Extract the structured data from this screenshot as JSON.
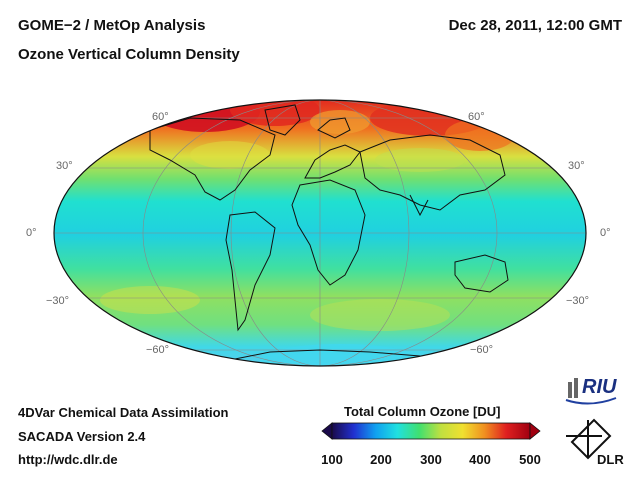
{
  "header": {
    "title": "GOME−2 / MetOp Analysis",
    "subtitle": "Ozone Vertical Column Density",
    "datetime": "Dec 28, 2011, 12:00 GMT"
  },
  "map": {
    "projection": "Mollweide",
    "lat_labels_left": [
      "60°",
      "30°",
      "0°",
      "−30°",
      "−60°"
    ],
    "lat_labels_right": [
      "60°",
      "30°",
      "0°",
      "−30°",
      "−60°"
    ]
  },
  "footer": {
    "line1": "4DVar Chemical Data Assimilation",
    "line2": "SACADA Version 2.4",
    "line3": "http://wdc.dlr.de"
  },
  "colorbar": {
    "title": "Total Column Ozone [DU]",
    "ticks": [
      "100",
      "200",
      "300",
      "400",
      "500"
    ],
    "colors": [
      "#1a0a4a",
      "#2030d0",
      "#10a0f0",
      "#20e0e0",
      "#40e070",
      "#c0e040",
      "#f0e030",
      "#f09020",
      "#e02020",
      "#a00010"
    ]
  },
  "logos": {
    "riu": "RIU",
    "dlr": "DLR"
  }
}
